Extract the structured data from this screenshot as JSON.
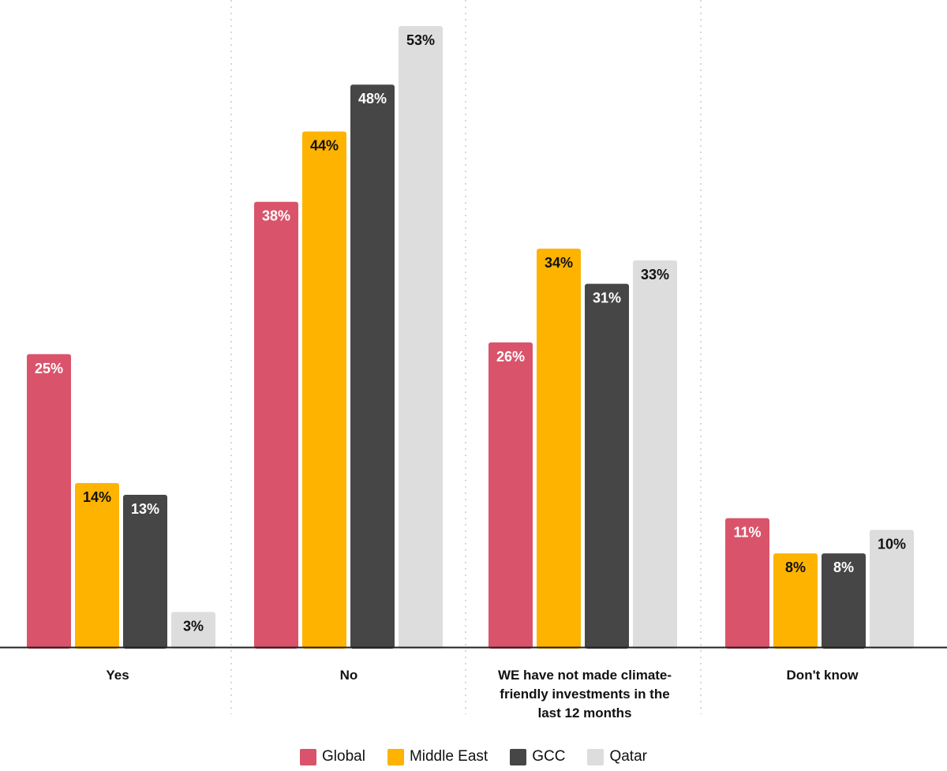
{
  "chart_data": {
    "type": "bar",
    "title": "",
    "xlabel": "",
    "ylabel": "",
    "ylim": [
      0,
      55
    ],
    "grid": false,
    "legend_position": "bottom",
    "categories": [
      "Yes",
      "No",
      "WE have not made climate-friendly investments in the last 12 months",
      "Don't know"
    ],
    "category_lines": [
      [
        "Yes"
      ],
      [
        "No"
      ],
      [
        "WE have not made climate-",
        "friendly investments in the",
        "last 12 months"
      ],
      [
        "Don't know"
      ]
    ],
    "series": [
      {
        "name": "Global",
        "color": "#d9546b",
        "label_color": "#ffffff",
        "values": [
          25,
          38,
          26,
          11
        ],
        "labels": [
          "25%",
          "38%",
          "26%",
          "11%"
        ]
      },
      {
        "name": "Middle East",
        "color": "#fdb300",
        "label_color": "#111111",
        "values": [
          14,
          44,
          34,
          8
        ],
        "labels": [
          "14%",
          "44%",
          "34%",
          "8%"
        ]
      },
      {
        "name": "GCC",
        "color": "#464646",
        "label_color": "#ffffff",
        "values": [
          13,
          48,
          31,
          8
        ],
        "labels": [
          "13%",
          "48%",
          "31%",
          "8%"
        ]
      },
      {
        "name": "Qatar",
        "color": "#dddddd",
        "label_color": "#111111",
        "values": [
          3,
          53,
          33,
          10
        ],
        "labels": [
          "3%",
          "53%",
          "33%",
          "10%"
        ]
      }
    ]
  }
}
